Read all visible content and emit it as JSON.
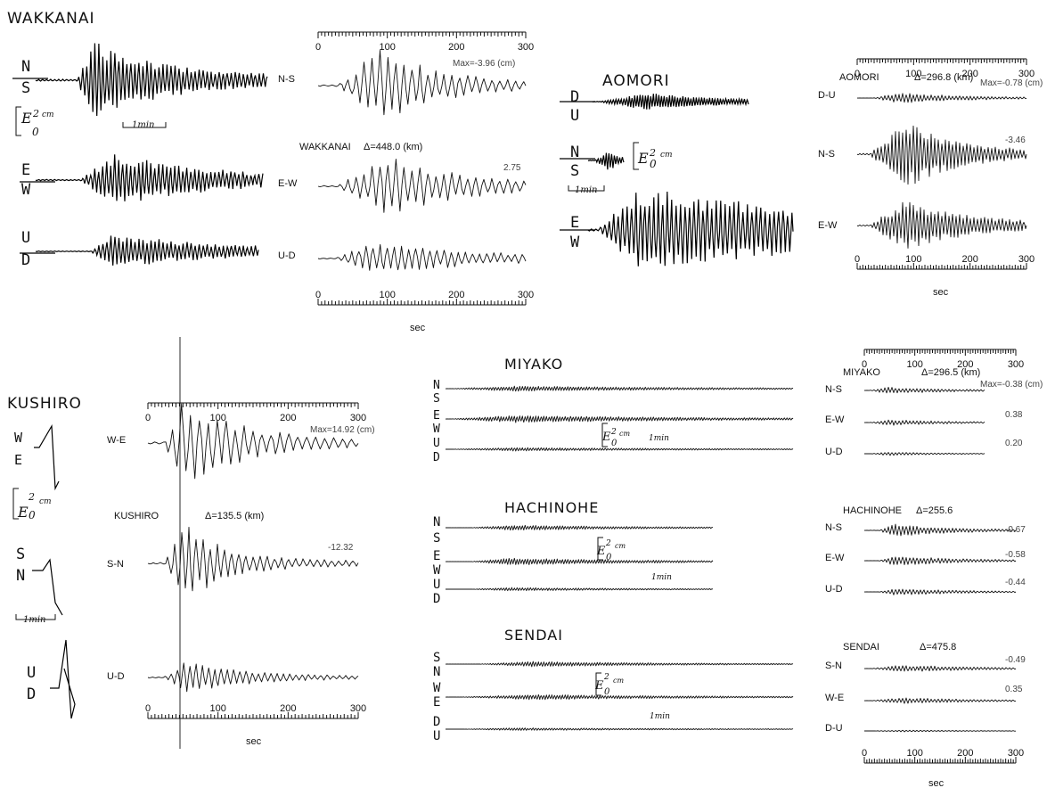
{
  "sec_label": "sec",
  "scale": {
    "cm2": "2",
    "cm_unit": "cm",
    "zero": "0",
    "min": "1min"
  },
  "ticks": [
    "0",
    "100",
    "200",
    "300"
  ],
  "wakkanai": {
    "name": "WAKKANAI",
    "orig": [
      "N",
      "S",
      "E",
      "W",
      "U",
      "D"
    ],
    "station": "WAKKANAI",
    "delta": "Δ=448.0 (km)",
    "comps": [
      {
        "name": "N-S",
        "max": "Max=-3.96 (cm)"
      },
      {
        "name": "E-W",
        "max": "2.75"
      },
      {
        "name": "U-D",
        "max": ""
      }
    ]
  },
  "aomori": {
    "name": "AOMORI",
    "orig": [
      "D",
      "U",
      "N",
      "S",
      "E",
      "W"
    ],
    "station": "AOMORI",
    "delta": "Δ=296.8 (km)",
    "comps": [
      {
        "name": "D-U",
        "max": "Max=-0.78 (cm)"
      },
      {
        "name": "N-S",
        "max": "-3.46"
      },
      {
        "name": "E-W",
        "max": ""
      }
    ]
  },
  "kushiro": {
    "name": "KUSHIRO",
    "orig": [
      "W",
      "E",
      "S",
      "N",
      "U",
      "D"
    ],
    "station": "KUSHIRO",
    "delta": "Δ=135.5 (km)",
    "comps": [
      {
        "name": "W-E",
        "max": "Max=14.92 (cm)"
      },
      {
        "name": "S-N",
        "max": "-12.32"
      },
      {
        "name": "U-D",
        "max": ""
      }
    ]
  },
  "miyako": {
    "name": "MIYAKO",
    "orig": [
      "N",
      "S",
      "E",
      "W",
      "U",
      "D"
    ],
    "station": "MIYAKO",
    "delta": "Δ=296.5 (km)",
    "comps": [
      {
        "name": "N-S",
        "max": "Max=-0.38 (cm)"
      },
      {
        "name": "E-W",
        "max": "0.38"
      },
      {
        "name": "U-D",
        "max": "0.20"
      }
    ]
  },
  "hachinohe": {
    "name": "HACHINOHE",
    "orig": [
      "N",
      "S",
      "E",
      "W",
      "U",
      "D"
    ],
    "station": "HACHINOHE",
    "delta": "Δ=255.6",
    "comps": [
      {
        "name": "N-S",
        "max": "-0.67"
      },
      {
        "name": "E-W",
        "max": "-0.58"
      },
      {
        "name": "U-D",
        "max": "-0.44"
      }
    ]
  },
  "sendai": {
    "name": "SENDAI",
    "orig": [
      "S",
      "N",
      "W",
      "E",
      "D",
      "U"
    ],
    "station": "SENDAI",
    "delta": "Δ=475.8",
    "comps": [
      {
        "name": "S-N",
        "max": "-0.49"
      },
      {
        "name": "W-E",
        "max": "0.35"
      },
      {
        "name": "D-U",
        "max": ""
      }
    ]
  }
}
